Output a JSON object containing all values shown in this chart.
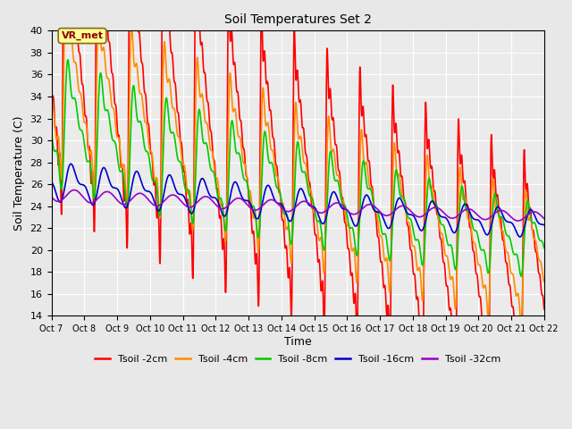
{
  "title": "Soil Temperatures Set 2",
  "xlabel": "Time",
  "ylabel": "Soil Temperature (C)",
  "ylim": [
    14,
    40
  ],
  "yticks": [
    14,
    16,
    18,
    20,
    22,
    24,
    26,
    28,
    30,
    32,
    34,
    36,
    38,
    40
  ],
  "x_labels": [
    "Oct 7",
    "Oct 8",
    "Oct 9",
    "Oct 10",
    "Oct 11",
    "Oct 12",
    "Oct 13",
    "Oct 14",
    "Oct 15",
    "Oct 16",
    "Oct 17",
    "Oct 18",
    "Oct 19",
    "Oct 20",
    "Oct 21",
    "Oct 22"
  ],
  "annotation_text": "VR_met",
  "series": {
    "Tsoil -2cm": {
      "color": "#FF0000",
      "lw": 1.2
    },
    "Tsoil -4cm": {
      "color": "#FF8C00",
      "lw": 1.2
    },
    "Tsoil -8cm": {
      "color": "#00CC00",
      "lw": 1.2
    },
    "Tsoil -16cm": {
      "color": "#0000CC",
      "lw": 1.2
    },
    "Tsoil -32cm": {
      "color": "#9900CC",
      "lw": 1.2
    }
  },
  "background_color": "#E8E8E8",
  "plot_bg": "#EBEBEB",
  "grid_color": "#FFFFFF",
  "n_days": 15,
  "points_per_day": 144
}
